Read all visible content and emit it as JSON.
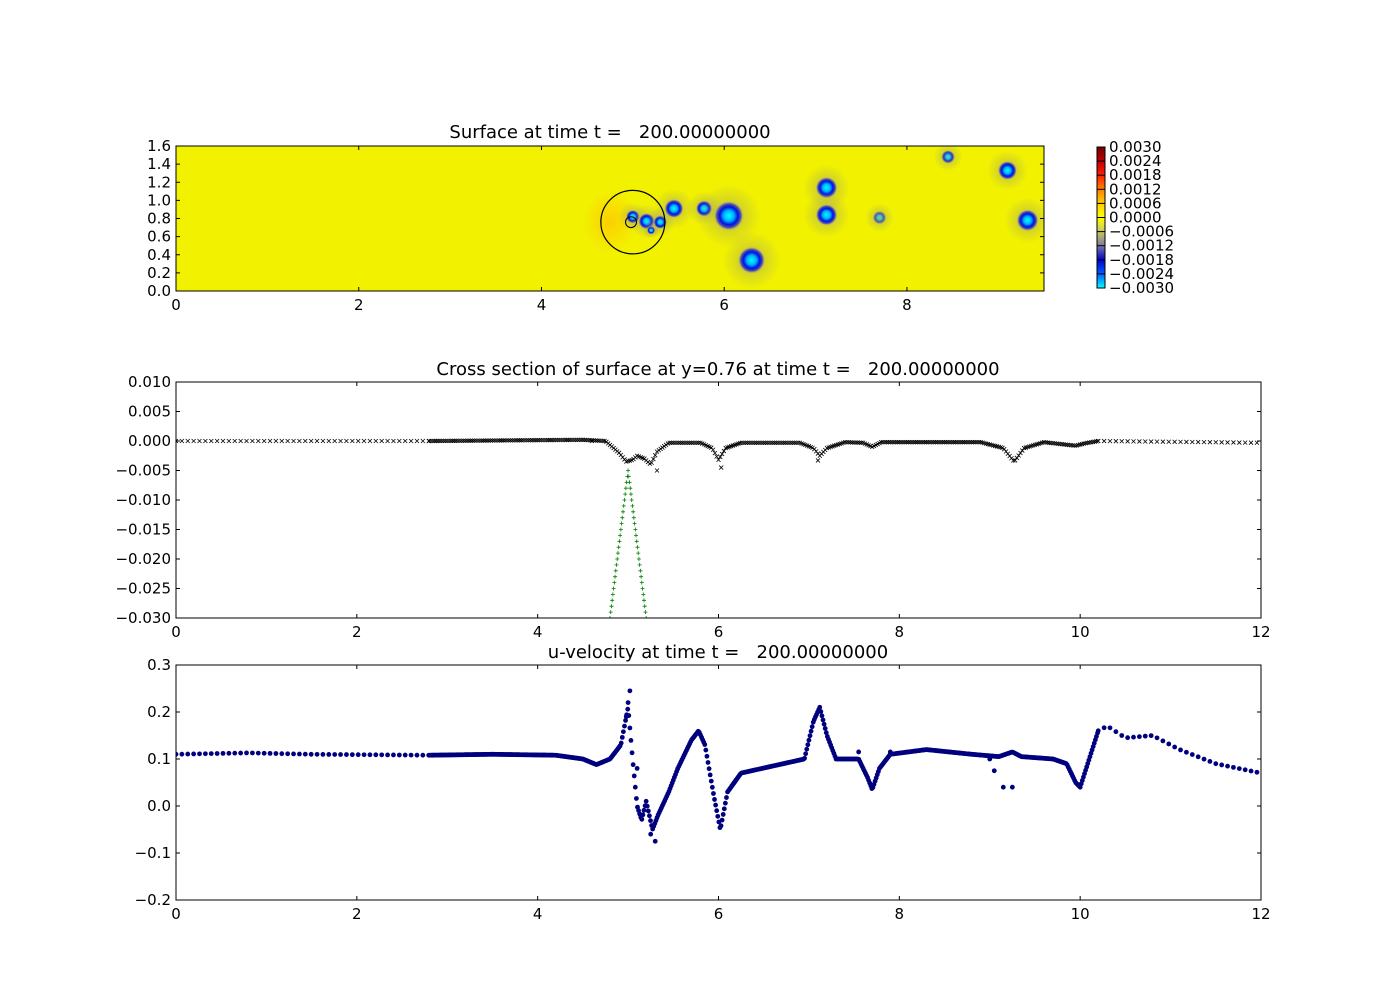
{
  "figure": {
    "background": "#ffffff"
  },
  "chart_data": [
    {
      "id": "surface",
      "type": "heatmap",
      "title": "Surface at time t =   200.00000000",
      "xlim": [
        0,
        9.5
      ],
      "ylim": [
        0,
        1.6
      ],
      "xticks": [
        0,
        2,
        4,
        6,
        8
      ],
      "xtick_labels": [
        "0",
        "2",
        "4",
        "6",
        "8"
      ],
      "yticks": [
        0,
        0.2,
        0.4,
        0.6,
        0.8,
        1.0,
        1.2,
        1.4,
        1.6
      ],
      "ytick_labels": [
        "0.0",
        "0.2",
        "0.4",
        "0.6",
        "0.8",
        "1.0",
        "1.2",
        "1.4",
        "1.6"
      ],
      "colorbar": {
        "range": [
          -0.003,
          0.003
        ],
        "tick_labels": [
          "0.0030",
          "0.0024",
          "0.0018",
          "0.0012",
          "0.0006",
          "0.0000",
          "−0.0006",
          "−0.0012",
          "−0.0018",
          "−0.0024",
          "−0.0030"
        ],
        "colormap": [
          "#00ffff",
          "#0060ff",
          "#0000d0",
          "#7a7aa0",
          "#c8c860",
          "#ffff00",
          "#ffd000",
          "#ff8000",
          "#ff2000",
          "#c00000",
          "#700000"
        ]
      },
      "field_background": "#f2f200",
      "vortices": [
        {
          "x": 5.0,
          "y": 0.82,
          "r": 0.05,
          "depth": 1
        },
        {
          "x": 5.15,
          "y": 0.77,
          "r": 0.06,
          "depth": 1
        },
        {
          "x": 5.2,
          "y": 0.67,
          "r": 0.03,
          "depth": 1
        },
        {
          "x": 5.3,
          "y": 0.76,
          "r": 0.05,
          "depth": 1
        },
        {
          "x": 5.45,
          "y": 0.91,
          "r": 0.07,
          "depth": 1
        },
        {
          "x": 5.78,
          "y": 0.91,
          "r": 0.06,
          "depth": 1
        },
        {
          "x": 6.05,
          "y": 0.83,
          "r": 0.11,
          "depth": 1
        },
        {
          "x": 6.3,
          "y": 0.34,
          "r": 0.1,
          "depth": 1
        },
        {
          "x": 7.12,
          "y": 1.14,
          "r": 0.08,
          "depth": 1
        },
        {
          "x": 7.12,
          "y": 0.84,
          "r": 0.08,
          "depth": 1
        },
        {
          "x": 7.7,
          "y": 0.81,
          "r": 0.05,
          "depth": 0.6
        },
        {
          "x": 8.45,
          "y": 1.48,
          "r": 0.05,
          "depth": 0.8
        },
        {
          "x": 9.1,
          "y": 1.33,
          "r": 0.07,
          "depth": 1
        },
        {
          "x": 9.32,
          "y": 0.78,
          "r": 0.08,
          "depth": 1
        }
      ],
      "circle": {
        "x": 5.0,
        "y": 0.76,
        "r": 0.35
      },
      "inner_circle": {
        "x": 4.98,
        "y": 0.76,
        "r": 0.06
      }
    },
    {
      "id": "cross_section",
      "type": "scatter",
      "title": "Cross section of surface at y=0.76 at time t =   200.00000000",
      "xlim": [
        0,
        12
      ],
      "ylim": [
        -0.03,
        0.01
      ],
      "xticks": [
        0,
        2,
        4,
        6,
        8,
        10,
        12
      ],
      "xtick_labels": [
        "0",
        "2",
        "4",
        "6",
        "8",
        "10",
        "12"
      ],
      "yticks": [
        0.01,
        0.005,
        0,
        -0.005,
        -0.01,
        -0.015,
        -0.02,
        -0.025,
        -0.03
      ],
      "ytick_labels": [
        "0.010",
        "0.005",
        "0.000",
        "−0.005",
        "−0.010",
        "−0.015",
        "−0.020",
        "−0.025",
        "−0.030"
      ],
      "series": [
        {
          "marker": "x",
          "color": "#000000",
          "segments": [
            {
              "x_start": 0,
              "x_end": 2.8,
              "step": 0.065,
              "points": [
                [
                  0,
                  0
                ],
                [
                  2.8,
                  0
                ]
              ]
            },
            {
              "x_start": 2.8,
              "x_end": 10.2,
              "step": 0.02,
              "points": [
                [
                  2.8,
                  0
                ],
                [
                  4.5,
                  0.0002
                ],
                [
                  4.75,
                  0
                ],
                [
                  4.9,
                  -0.002
                ],
                [
                  4.98,
                  -0.0035
                ],
                [
                  5.05,
                  -0.0032
                ],
                [
                  5.1,
                  -0.0025
                ],
                [
                  5.18,
                  -0.003
                ],
                [
                  5.25,
                  -0.004
                ],
                [
                  5.32,
                  -0.0018
                ],
                [
                  5.45,
                  -0.0003
                ],
                [
                  5.8,
                  -0.0003
                ],
                [
                  5.93,
                  -0.0012
                ],
                [
                  6.0,
                  -0.0032
                ],
                [
                  6.08,
                  -0.0012
                ],
                [
                  6.25,
                  -0.0003
                ],
                [
                  6.9,
                  -0.0003
                ],
                [
                  7.05,
                  -0.0012
                ],
                [
                  7.12,
                  -0.0025
                ],
                [
                  7.2,
                  -0.0012
                ],
                [
                  7.4,
                  -0.0002
                ],
                [
                  7.6,
                  -0.0003
                ],
                [
                  7.7,
                  -0.001
                ],
                [
                  7.8,
                  -0.0002
                ],
                [
                  8.9,
                  -0.0002
                ],
                [
                  9.15,
                  -0.0012
                ],
                [
                  9.27,
                  -0.0035
                ],
                [
                  9.38,
                  -0.0012
                ],
                [
                  9.6,
                  -0.0002
                ],
                [
                  9.95,
                  -0.0008
                ],
                [
                  10.05,
                  -0.0004
                ],
                [
                  10.2,
                  0
                ]
              ]
            },
            {
              "x_start": 10.2,
              "x_end": 12,
              "step": 0.065,
              "points": [
                [
                  10.2,
                  0
                ],
                [
                  12,
                  -0.0003
                ]
              ]
            }
          ],
          "extra_points": [
            [
              6.03,
              -0.0045
            ],
            [
              7.1,
              -0.0033
            ],
            [
              5.32,
              -0.005
            ],
            [
              4.6,
              0
            ]
          ]
        },
        {
          "marker": "+",
          "color": "#007f00",
          "segments": [
            {
              "x_start": 4.8,
              "x_end": 5.2,
              "step": 0.008,
              "points": [
                [
                  4.8,
                  -0.03
                ],
                [
                  5.0,
                  -0.005
                ],
                [
                  5.2,
                  -0.03
                ]
              ]
            }
          ],
          "extra_points": []
        }
      ]
    },
    {
      "id": "u_velocity",
      "type": "scatter",
      "title": "u-velocity at time t =   200.00000000",
      "xlim": [
        0,
        12
      ],
      "ylim": [
        -0.2,
        0.3
      ],
      "xticks": [
        0,
        2,
        4,
        6,
        8,
        10,
        12
      ],
      "xtick_labels": [
        "0",
        "2",
        "4",
        "6",
        "8",
        "10",
        "12"
      ],
      "yticks": [
        0.3,
        0.2,
        0.1,
        0.0,
        -0.1,
        -0.2
      ],
      "ytick_labels": [
        "0.3",
        "0.2",
        "0.1",
        "0.0",
        "−0.1",
        "−0.2"
      ],
      "series": [
        {
          "marker": "o",
          "color": "#00007f",
          "segments": [
            {
              "x_start": 0,
              "x_end": 2.8,
              "step": 0.065,
              "points": [
                [
                  0,
                  0.11
                ],
                [
                  0.8,
                  0.113
                ],
                [
                  1.5,
                  0.11
                ],
                [
                  2.8,
                  0.108
                ]
              ]
            },
            {
              "x_start": 2.8,
              "x_end": 10.2,
              "step": 0.012,
              "points": [
                [
                  2.8,
                  0.108
                ],
                [
                  3.5,
                  0.11
                ],
                [
                  4.2,
                  0.108
                ],
                [
                  4.5,
                  0.1
                ],
                [
                  4.65,
                  0.088
                ],
                [
                  4.8,
                  0.1
                ],
                [
                  4.92,
                  0.13
                ],
                [
                  5.0,
                  0.21
                ],
                [
                  5.05,
                  0.1
                ],
                [
                  5.1,
                  0.0
                ],
                [
                  5.15,
                  -0.03
                ],
                [
                  5.2,
                  0.01
                ],
                [
                  5.27,
                  -0.05
                ],
                [
                  5.33,
                  -0.02
                ],
                [
                  5.45,
                  0.03
                ],
                [
                  5.55,
                  0.08
                ],
                [
                  5.7,
                  0.14
                ],
                [
                  5.78,
                  0.16
                ],
                [
                  5.85,
                  0.13
                ],
                [
                  5.95,
                  0.02
                ],
                [
                  6.02,
                  -0.05
                ],
                [
                  6.1,
                  0.03
                ],
                [
                  6.25,
                  0.07
                ],
                [
                  6.6,
                  0.085
                ],
                [
                  6.95,
                  0.1
                ],
                [
                  7.05,
                  0.18
                ],
                [
                  7.12,
                  0.21
                ],
                [
                  7.2,
                  0.15
                ],
                [
                  7.3,
                  0.1
                ],
                [
                  7.55,
                  0.1
                ],
                [
                  7.65,
                  0.06
                ],
                [
                  7.7,
                  0.035
                ],
                [
                  7.78,
                  0.08
                ],
                [
                  7.9,
                  0.11
                ],
                [
                  8.3,
                  0.12
                ],
                [
                  8.8,
                  0.11
                ],
                [
                  9.1,
                  0.105
                ],
                [
                  9.25,
                  0.115
                ],
                [
                  9.35,
                  0.105
                ],
                [
                  9.7,
                  0.1
                ],
                [
                  9.85,
                  0.09
                ],
                [
                  9.95,
                  0.05
                ],
                [
                  10.0,
                  0.04
                ],
                [
                  10.1,
                  0.1
                ],
                [
                  10.2,
                  0.16
                ]
              ]
            },
            {
              "x_start": 10.2,
              "x_end": 12,
              "step": 0.065,
              "points": [
                [
                  10.2,
                  0.16
                ],
                [
                  10.3,
                  0.17
                ],
                [
                  10.5,
                  0.145
                ],
                [
                  10.8,
                  0.15
                ],
                [
                  11.1,
                  0.12
                ],
                [
                  11.5,
                  0.09
                ],
                [
                  12,
                  0.07
                ]
              ]
            }
          ],
          "extra_points": [
            [
              5.02,
              0.245
            ],
            [
              4.98,
              0.19
            ],
            [
              5.1,
              0.08
            ],
            [
              5.3,
              -0.075
            ],
            [
              5.25,
              -0.06
            ],
            [
              9.15,
              0.04
            ],
            [
              9.25,
              0.04
            ],
            [
              9.0,
              0.1
            ],
            [
              9.05,
              0.075
            ],
            [
              7.55,
              0.115
            ],
            [
              7.9,
              0.115
            ],
            [
              5.0,
              0.22
            ]
          ]
        }
      ]
    }
  ]
}
